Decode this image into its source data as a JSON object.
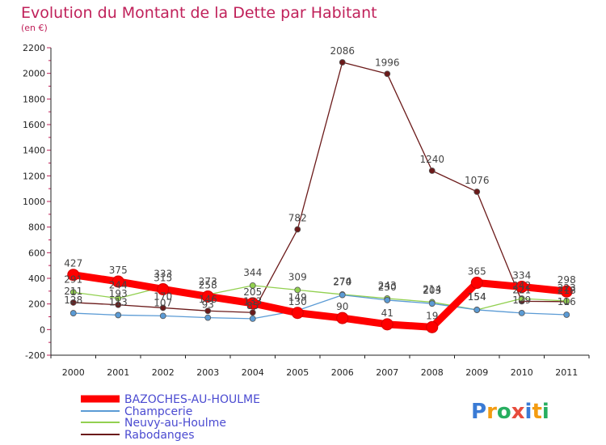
{
  "chart_data": {
    "type": "line",
    "title": "Evolution du Montant de la Dette par Habitant",
    "subtitle": "(en €)",
    "xlabel": "",
    "ylabel": "",
    "categories": [
      "2000",
      "2001",
      "2002",
      "2003",
      "2004",
      "2005",
      "2006",
      "2007",
      "2008",
      "2009",
      "2010",
      "2011"
    ],
    "ylim": [
      -200,
      2200
    ],
    "yticks": [
      -200,
      0,
      200,
      400,
      600,
      800,
      1000,
      1200,
      1400,
      1600,
      1800,
      2000,
      2200
    ],
    "series": [
      {
        "name": "BAZOCHES-AU-HOULME",
        "color": "#ff0000",
        "values": [
          427,
          375,
          315,
          258,
          205,
          130,
          90,
          41,
          19,
          365,
          334,
          298
        ]
      },
      {
        "name": "Champcerie",
        "color": "#5b9bd5",
        "values": [
          128,
          113,
          107,
          93,
          85,
          149,
          270,
          230,
          203,
          154,
          129,
          116
        ]
      },
      {
        "name": "Neuvy-au-Houlme",
        "color": "#92d050",
        "values": [
          291,
          244,
          333,
          273,
          344,
          309,
          274,
          243,
          214,
          154,
          242,
          223
        ]
      },
      {
        "name": "Rabodanges",
        "color": "#6b1a1a",
        "values": [
          211,
          193,
          170,
          146,
          133,
          782,
          2086,
          1996,
          1240,
          1076,
          221,
          218
        ]
      }
    ],
    "legend_position": "bottom-left"
  },
  "brand": {
    "text": "Proxiti"
  }
}
